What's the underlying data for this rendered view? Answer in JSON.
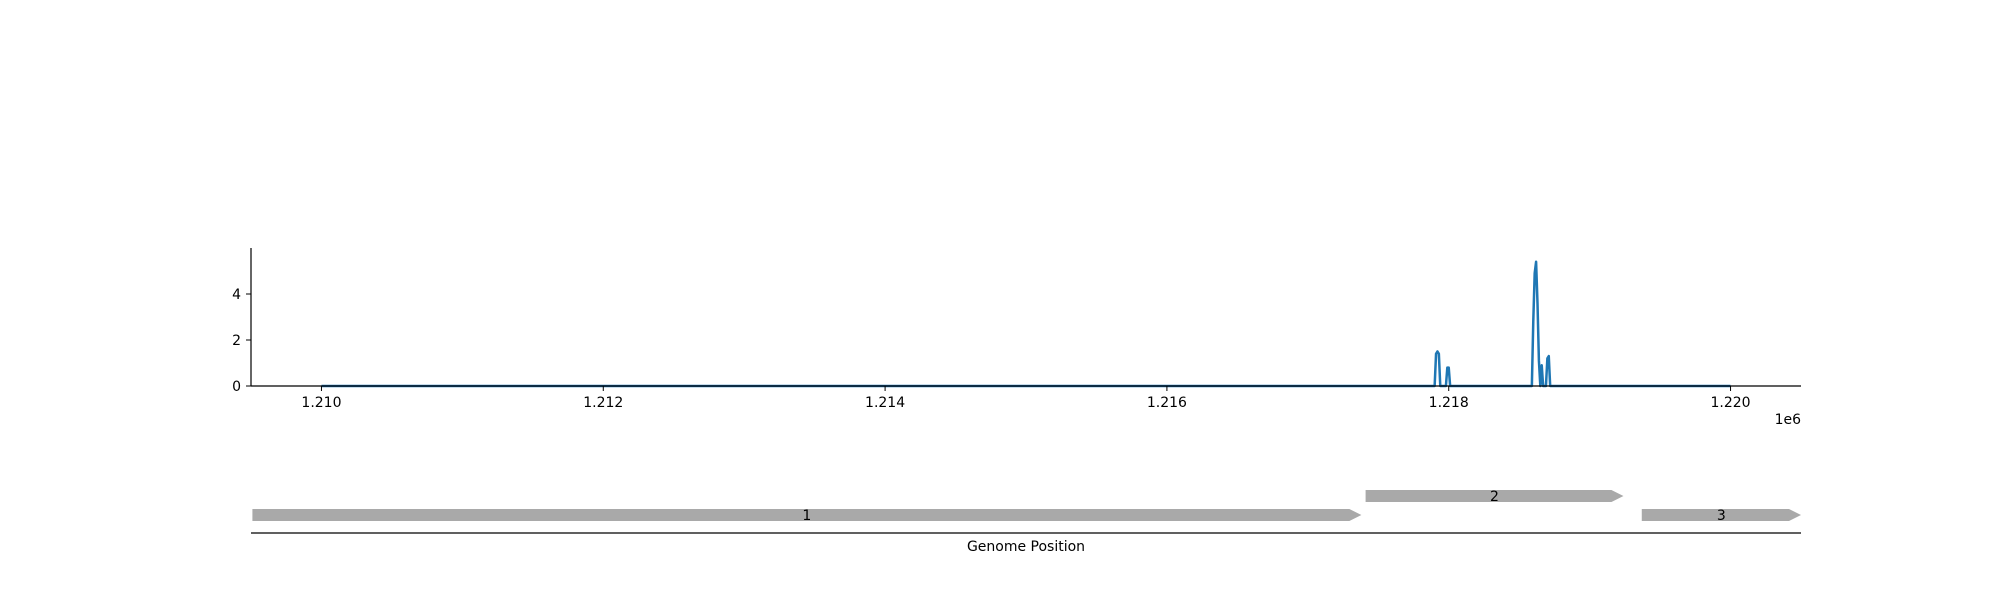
{
  "chart_data": [
    {
      "type": "line",
      "title": "",
      "xlabel": "",
      "ylabel": "",
      "x_offset_label": "1e6",
      "xlim": [
        1.2095,
        1.2205
      ],
      "ylim": [
        0,
        6
      ],
      "x_ticks": [
        1.21,
        1.212,
        1.214,
        1.216,
        1.218,
        1.22
      ],
      "x_tick_labels": [
        "1.210",
        "1.212",
        "1.214",
        "1.216",
        "1.218",
        "1.220"
      ],
      "y_ticks": [
        0,
        2,
        4
      ],
      "y_tick_labels": [
        "0",
        "2",
        "4"
      ],
      "grid": false,
      "color": "#1f77b4",
      "series": [
        {
          "x": [
            1.21,
            1.2179,
            1.21791,
            1.21792,
            1.21793,
            1.21794,
            1.21795,
            1.21796,
            1.21797,
            1.21798,
            1.21799,
            1.218,
            1.21801,
            1.21859,
            1.2186,
            1.21861,
            1.21862,
            1.21863,
            1.21864,
            1.21865,
            1.21866,
            1.21867,
            1.21868,
            1.21869,
            1.2187,
            1.21871,
            1.21872,
            1.22
          ],
          "y": [
            0,
            0,
            1.4,
            1.5,
            1.4,
            0,
            0,
            0,
            0,
            0,
            0.8,
            0.8,
            0,
            0,
            2.8,
            4.9,
            5.4,
            3.6,
            1.1,
            0,
            0.9,
            0,
            0,
            0,
            1.2,
            1.3,
            0,
            0
          ]
        }
      ]
    },
    {
      "type": "gene-track",
      "xlabel": "Genome Position",
      "xlim": [
        1.2095,
        1.2205
      ],
      "genes": [
        {
          "label": "1",
          "start": 1.20951,
          "end": 1.21738,
          "row": 0
        },
        {
          "label": "2",
          "start": 1.21741,
          "end": 1.21924,
          "row": 1
        },
        {
          "label": "3",
          "start": 1.21937,
          "end": 1.2205,
          "row": 0
        }
      ],
      "color": "#a9a9a9"
    }
  ]
}
